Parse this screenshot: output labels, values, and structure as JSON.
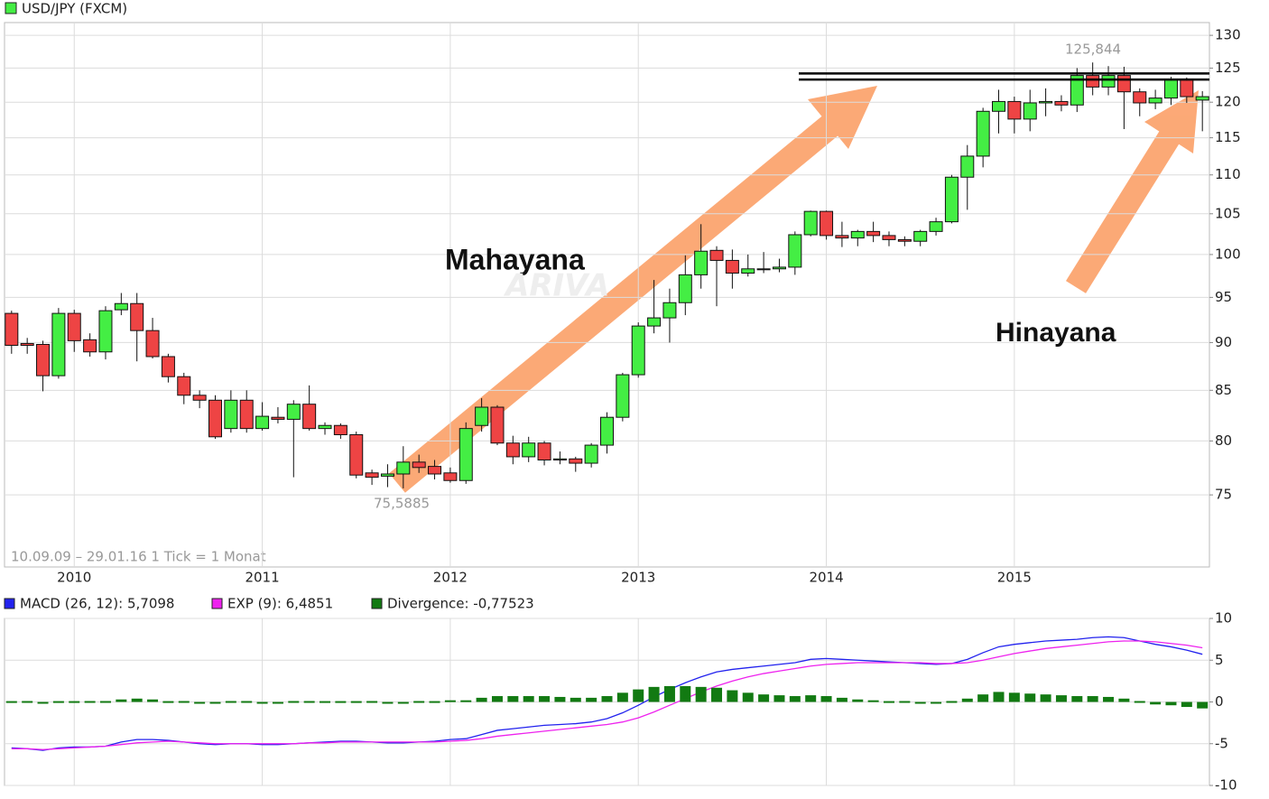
{
  "chart_data": [
    {
      "type": "candlestick",
      "title": "USD/JPY (FXCM)",
      "subtitle": "10.09.09 – 29.01.16   1 Tick = 1 Monat",
      "x": [
        "2009-09",
        "2009-10",
        "2009-11",
        "2009-12",
        "2010-01",
        "2010-02",
        "2010-03",
        "2010-04",
        "2010-05",
        "2010-06",
        "2010-07",
        "2010-08",
        "2010-09",
        "2010-10",
        "2010-11",
        "2010-12",
        "2011-01",
        "2011-02",
        "2011-03",
        "2011-04",
        "2011-05",
        "2011-06",
        "2011-07",
        "2011-08",
        "2011-09",
        "2011-10",
        "2011-11",
        "2011-12",
        "2012-01",
        "2012-02",
        "2012-03",
        "2012-04",
        "2012-05",
        "2012-06",
        "2012-07",
        "2012-08",
        "2012-09",
        "2012-10",
        "2012-11",
        "2012-12",
        "2013-01",
        "2013-02",
        "2013-03",
        "2013-04",
        "2013-05",
        "2013-06",
        "2013-07",
        "2013-08",
        "2013-09",
        "2013-10",
        "2013-11",
        "2013-12",
        "2014-01",
        "2014-02",
        "2014-03",
        "2014-04",
        "2014-05",
        "2014-06",
        "2014-07",
        "2014-08",
        "2014-09",
        "2014-10",
        "2014-11",
        "2014-12",
        "2015-01",
        "2015-02",
        "2015-03",
        "2015-04",
        "2015-05",
        "2015-06",
        "2015-07",
        "2015-08",
        "2015-09",
        "2015-10",
        "2015-11",
        "2015-12",
        "2016-01"
      ],
      "open": [
        93.2,
        89.9,
        89.8,
        86.5,
        93.2,
        90.3,
        89.0,
        93.6,
        94.3,
        91.3,
        88.5,
        86.4,
        84.5,
        84.0,
        81.2,
        84.0,
        81.2,
        82.3,
        82.1,
        83.6,
        81.2,
        81.5,
        80.6,
        77.0,
        76.7,
        76.9,
        78.0,
        77.6,
        77.0,
        76.3,
        81.5,
        83.3,
        79.8,
        78.5,
        79.8,
        78.2,
        78.3,
        77.9,
        79.6,
        82.3,
        86.6,
        91.8,
        92.7,
        94.4,
        97.6,
        100.5,
        99.3,
        97.8,
        98.2,
        98.3,
        98.5,
        102.4,
        105.3,
        102.3,
        102.0,
        102.8,
        102.3,
        101.8,
        101.6,
        102.8,
        104.0,
        109.7,
        112.5,
        118.7,
        120.1,
        117.6,
        119.9,
        120.1,
        119.6,
        123.9,
        122.2,
        123.9,
        121.5,
        119.9,
        120.6,
        123.3,
        120.3
      ],
      "high": [
        93.5,
        90.5,
        90.2,
        93.8,
        93.6,
        91.0,
        94.0,
        95.5,
        95.5,
        92.7,
        88.8,
        86.8,
        85.0,
        84.5,
        85.0,
        85.0,
        83.8,
        83.3,
        84.0,
        85.5,
        81.8,
        81.7,
        80.9,
        77.3,
        77.8,
        79.5,
        78.7,
        78.2,
        77.5,
        81.8,
        84.2,
        83.5,
        80.5,
        80.4,
        80.0,
        79.0,
        78.5,
        79.8,
        82.8,
        86.8,
        92.2,
        97.0,
        96.0,
        99.9,
        103.7,
        101.0,
        100.6,
        100.0,
        100.3,
        99.5,
        102.8,
        105.4,
        105.4,
        104.0,
        103.0,
        104.0,
        102.8,
        102.2,
        103.0,
        104.5,
        110.0,
        114.0,
        119.2,
        121.8,
        120.8,
        121.8,
        122.0,
        121.0,
        125.0,
        125.844,
        125.3,
        125.2,
        122.0,
        121.8,
        123.7,
        123.6,
        121.6
      ],
      "low": [
        88.8,
        88.8,
        84.9,
        86.2,
        89.0,
        88.5,
        88.2,
        93.0,
        88.0,
        88.3,
        85.8,
        83.6,
        83.2,
        80.2,
        80.8,
        80.8,
        81.0,
        81.7,
        76.6,
        81.0,
        80.6,
        80.2,
        76.5,
        75.9,
        75.7,
        75.5885,
        77.0,
        76.4,
        76.1,
        76.0,
        80.9,
        79.6,
        77.8,
        78.0,
        77.7,
        77.8,
        77.1,
        77.5,
        78.8,
        81.9,
        86.3,
        91.0,
        90.0,
        93.0,
        96.0,
        94.0,
        96.0,
        97.4,
        97.8,
        97.9,
        97.6,
        102.2,
        101.8,
        100.9,
        101.0,
        101.5,
        101.0,
        101.0,
        101.0,
        102.3,
        103.8,
        105.5,
        111.0,
        115.6,
        115.6,
        115.9,
        118.0,
        118.7,
        118.6,
        121.0,
        121.0,
        116.2,
        118.0,
        119.0,
        119.6,
        119.9,
        115.9
      ],
      "close": [
        89.7,
        89.7,
        86.5,
        93.2,
        90.2,
        89.0,
        93.5,
        94.3,
        91.3,
        88.5,
        86.4,
        84.5,
        84.0,
        80.4,
        84.0,
        81.2,
        82.4,
        82.1,
        83.6,
        81.2,
        81.5,
        80.6,
        76.8,
        76.6,
        76.9,
        78.0,
        77.5,
        76.9,
        76.3,
        81.2,
        83.3,
        79.8,
        78.5,
        79.8,
        78.2,
        78.3,
        77.9,
        79.6,
        82.3,
        86.6,
        91.8,
        92.7,
        94.4,
        97.6,
        100.4,
        99.3,
        97.8,
        98.3,
        98.3,
        98.5,
        102.4,
        105.3,
        102.3,
        102.0,
        102.8,
        102.3,
        101.8,
        101.6,
        102.8,
        104.0,
        109.7,
        112.5,
        118.7,
        120.1,
        117.6,
        119.9,
        120.1,
        119.6,
        123.9,
        122.2,
        123.9,
        121.5,
        119.9,
        120.6,
        123.3,
        120.8,
        120.8
      ],
      "up_color": "#44ee44",
      "down_color": "#ee4444",
      "legend_color": "#44ee44",
      "log_scale": true,
      "grid": true,
      "ylim": [
        68.8,
        132
      ],
      "yticks": [
        75,
        80,
        85,
        90,
        95,
        100,
        105,
        110,
        115,
        120,
        125,
        130
      ],
      "xlim": [
        "2009-09",
        "2016-01"
      ],
      "xticks": [
        {
          "value": "2010-01",
          "label": "2010"
        },
        {
          "value": "2011-01",
          "label": "2011"
        },
        {
          "value": "2012-01",
          "label": "2012"
        },
        {
          "value": "2013-01",
          "label": "2013"
        },
        {
          "value": "2014-01",
          "label": "2014"
        },
        {
          "value": "2015-01",
          "label": "2015"
        }
      ],
      "hlines": [
        124.2,
        123.3
      ],
      "annotations": [
        {
          "text": "Mahayana"
        },
        {
          "text": "Hinayana"
        },
        {
          "text": "125,844"
        },
        {
          "text": "75,5885"
        },
        {
          "text": "ARIVA"
        }
      ]
    },
    {
      "type": "macd",
      "x": [
        "2009-09",
        "2009-10",
        "2009-11",
        "2009-12",
        "2010-01",
        "2010-02",
        "2010-03",
        "2010-04",
        "2010-05",
        "2010-06",
        "2010-07",
        "2010-08",
        "2010-09",
        "2010-10",
        "2010-11",
        "2010-12",
        "2011-01",
        "2011-02",
        "2011-03",
        "2011-04",
        "2011-05",
        "2011-06",
        "2011-07",
        "2011-08",
        "2011-09",
        "2011-10",
        "2011-11",
        "2011-12",
        "2012-01",
        "2012-02",
        "2012-03",
        "2012-04",
        "2012-05",
        "2012-06",
        "2012-07",
        "2012-08",
        "2012-09",
        "2012-10",
        "2012-11",
        "2012-12",
        "2013-01",
        "2013-02",
        "2013-03",
        "2013-04",
        "2013-05",
        "2013-06",
        "2013-07",
        "2013-08",
        "2013-09",
        "2013-10",
        "2013-11",
        "2013-12",
        "2014-01",
        "2014-02",
        "2014-03",
        "2014-04",
        "2014-05",
        "2014-06",
        "2014-07",
        "2014-08",
        "2014-09",
        "2014-10",
        "2014-11",
        "2014-12",
        "2015-01",
        "2015-02",
        "2015-03",
        "2015-04",
        "2015-05",
        "2015-06",
        "2015-07",
        "2015-08",
        "2015-09",
        "2015-10",
        "2015-11",
        "2015-12",
        "2016-01"
      ],
      "series": [
        {
          "name": "MACD (26, 12): 5,7098",
          "color": "#2222ee",
          "kind": "line",
          "values": [
            -5.5,
            -5.6,
            -5.8,
            -5.5,
            -5.4,
            -5.4,
            -5.3,
            -4.8,
            -4.5,
            -4.5,
            -4.6,
            -4.8,
            -5.0,
            -5.1,
            -5.0,
            -5.0,
            -5.1,
            -5.1,
            -5.0,
            -4.9,
            -4.8,
            -4.7,
            -4.7,
            -4.8,
            -4.9,
            -4.9,
            -4.8,
            -4.7,
            -4.5,
            -4.4,
            -3.9,
            -3.4,
            -3.2,
            -3.0,
            -2.8,
            -2.7,
            -2.6,
            -2.4,
            -2.0,
            -1.3,
            -0.4,
            0.6,
            1.5,
            2.3,
            3.0,
            3.6,
            3.9,
            4.1,
            4.3,
            4.5,
            4.7,
            5.1,
            5.2,
            5.1,
            5.0,
            4.9,
            4.8,
            4.7,
            4.6,
            4.5,
            4.6,
            5.1,
            5.9,
            6.6,
            6.9,
            7.1,
            7.3,
            7.4,
            7.5,
            7.7,
            7.8,
            7.7,
            7.3,
            6.9,
            6.6,
            6.2,
            5.7098
          ]
        },
        {
          "name": "EXP (9): 6,4851",
          "color": "#ee22ee",
          "kind": "line",
          "values": [
            -5.6,
            -5.6,
            -5.7,
            -5.6,
            -5.5,
            -5.4,
            -5.3,
            -5.1,
            -4.9,
            -4.8,
            -4.7,
            -4.8,
            -4.9,
            -5.0,
            -5.0,
            -5.0,
            -5.0,
            -5.0,
            -5.0,
            -4.9,
            -4.9,
            -4.8,
            -4.8,
            -4.8,
            -4.8,
            -4.8,
            -4.8,
            -4.8,
            -4.7,
            -4.6,
            -4.4,
            -4.1,
            -3.9,
            -3.7,
            -3.5,
            -3.3,
            -3.1,
            -2.9,
            -2.7,
            -2.4,
            -1.9,
            -1.2,
            -0.4,
            0.4,
            1.2,
            1.9,
            2.5,
            3.0,
            3.4,
            3.7,
            4.0,
            4.3,
            4.5,
            4.6,
            4.7,
            4.7,
            4.7,
            4.7,
            4.7,
            4.6,
            4.6,
            4.7,
            5.0,
            5.4,
            5.8,
            6.1,
            6.4,
            6.6,
            6.8,
            7.0,
            7.2,
            7.3,
            7.3,
            7.2,
            7.0,
            6.8,
            6.4851
          ]
        },
        {
          "name": "Divergence: -0,77523",
          "color": "#127a12",
          "kind": "bar",
          "values": [
            0.1,
            0,
            -0.1,
            0.1,
            0.1,
            0,
            0,
            0.3,
            0.4,
            0.3,
            0.1,
            0,
            -0.1,
            -0.1,
            0,
            0,
            -0.1,
            -0.1,
            0,
            0,
            0.1,
            0.1,
            0.1,
            0,
            -0.1,
            -0.1,
            0,
            0.1,
            0.2,
            0.2,
            0.5,
            0.7,
            0.7,
            0.7,
            0.7,
            0.6,
            0.5,
            0.5,
            0.7,
            1.1,
            1.5,
            1.8,
            1.9,
            1.9,
            1.8,
            1.7,
            1.4,
            1.1,
            0.9,
            0.8,
            0.7,
            0.8,
            0.7,
            0.5,
            0.3,
            0.2,
            0.1,
            0,
            -0.1,
            -0.1,
            0,
            0.4,
            0.9,
            1.2,
            1.1,
            1.0,
            0.9,
            0.8,
            0.7,
            0.7,
            0.6,
            0.4,
            0,
            -0.3,
            -0.4,
            -0.6,
            -0.77523
          ]
        }
      ],
      "grid": true,
      "ylim": [
        -10,
        10
      ],
      "yticks": [
        -10,
        -5,
        0,
        5,
        10
      ],
      "xlim": [
        "2009-09",
        "2016-01"
      ],
      "xticks": [
        {
          "value": "2010-01",
          "label": "2010"
        },
        {
          "value": "2011-01",
          "label": "2011"
        },
        {
          "value": "2012-01",
          "label": "2012"
        },
        {
          "value": "2013-01",
          "label": "2013"
        },
        {
          "value": "2014-01",
          "label": "2014"
        },
        {
          "value": "2015-01",
          "label": "2015"
        }
      ]
    }
  ]
}
